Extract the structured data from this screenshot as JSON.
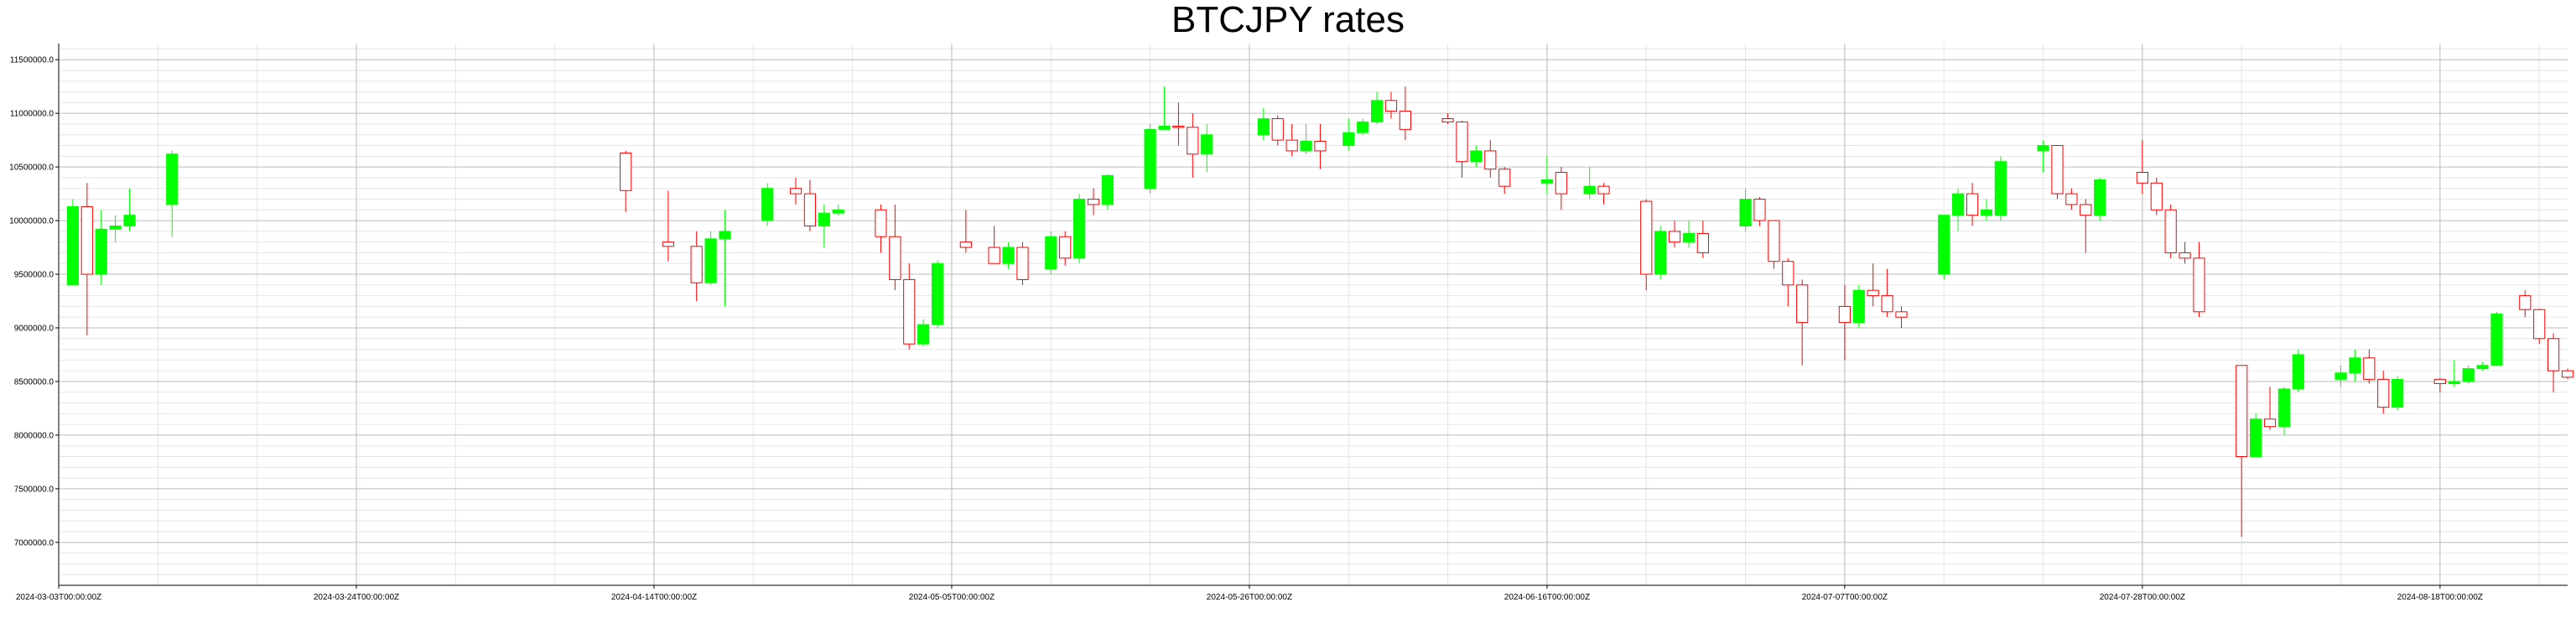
{
  "chart_data": {
    "type": "candlestick",
    "title": "BTCJPY rates",
    "xlabel": "",
    "ylabel": "",
    "x_axis": {
      "type": "date",
      "range": [
        "2024-03-03",
        "2024-08-27"
      ],
      "ticks": [
        {
          "date": "2024-03-03",
          "label": "2024-03-03T00:00:00Z"
        },
        {
          "date": "2024-03-24",
          "label": "2024-03-24T00:00:00Z"
        },
        {
          "date": "2024-04-14",
          "label": "2024-04-14T00:00:00Z"
        },
        {
          "date": "2024-05-05",
          "label": "2024-05-05T00:00:00Z"
        },
        {
          "date": "2024-05-26",
          "label": "2024-05-26T00:00:00Z"
        },
        {
          "date": "2024-06-16",
          "label": "2024-06-16T00:00:00Z"
        },
        {
          "date": "2024-07-07",
          "label": "2024-07-07T00:00:00Z"
        },
        {
          "date": "2024-07-28",
          "label": "2024-07-28T00:00:00Z"
        },
        {
          "date": "2024-08-18",
          "label": "2024-08-18T00:00:00Z"
        }
      ]
    },
    "y_axis": {
      "range": [
        6600000,
        11650000
      ],
      "ticks": [
        {
          "value": 7000000,
          "label": "7000000.0"
        },
        {
          "value": 7500000,
          "label": "7500000.0"
        },
        {
          "value": 8000000,
          "label": "8000000.0"
        },
        {
          "value": 8500000,
          "label": "8500000.0"
        },
        {
          "value": 9000000,
          "label": "9000000.0"
        },
        {
          "value": 9500000,
          "label": "9500000.0"
        },
        {
          "value": 10000000,
          "label": "10000000.0"
        },
        {
          "value": 10500000,
          "label": "10500000.0"
        },
        {
          "value": 11000000,
          "label": "11000000.0"
        },
        {
          "value": 11500000,
          "label": "11500000.0"
        }
      ]
    },
    "grid": true,
    "colors": {
      "up": "#00ff00",
      "down": "#ff0000",
      "major_grid": "#bbbbbb",
      "minor_grid": "#e6e6e6"
    },
    "candles": [
      {
        "date": "2024-03-04",
        "open": 9400000,
        "high": 10200000,
        "low": 9400000,
        "close": 10130000
      },
      {
        "date": "2024-03-05",
        "open": 10130000,
        "high": 10350000,
        "low": 8930000,
        "close": 9500000
      },
      {
        "date": "2024-03-06",
        "open": 9500000,
        "high": 10100000,
        "low": 9400000,
        "close": 9920000
      },
      {
        "date": "2024-03-07",
        "open": 9920000,
        "high": 10050000,
        "low": 9800000,
        "close": 9950000
      },
      {
        "date": "2024-03-08",
        "open": 9950000,
        "high": 10300000,
        "low": 9900000,
        "close": 10050000
      },
      {
        "date": "2024-03-11",
        "open": 10150000,
        "high": 10650000,
        "low": 9850000,
        "close": 10620000
      },
      {
        "date": "2024-04-12",
        "open": 10630000,
        "high": 10650000,
        "low": 10080000,
        "close": 10280000
      },
      {
        "date": "2024-04-15",
        "open": 9800000,
        "high": 10280000,
        "low": 9620000,
        "close": 9760000
      },
      {
        "date": "2024-04-17",
        "open": 9760000,
        "high": 9900000,
        "low": 9250000,
        "close": 9420000
      },
      {
        "date": "2024-04-18",
        "open": 9420000,
        "high": 9900000,
        "low": 9400000,
        "close": 9830000
      },
      {
        "date": "2024-04-19",
        "open": 9830000,
        "high": 10100000,
        "low": 9200000,
        "close": 9900000
      },
      {
        "date": "2024-04-22",
        "open": 10000000,
        "high": 10350000,
        "low": 9950000,
        "close": 10300000
      },
      {
        "date": "2024-04-24",
        "open": 10300000,
        "high": 10400000,
        "low": 10150000,
        "close": 10250000
      },
      {
        "date": "2024-04-25",
        "open": 10250000,
        "high": 10380000,
        "low": 9900000,
        "close": 9950000
      },
      {
        "date": "2024-04-26",
        "open": 9950000,
        "high": 10150000,
        "low": 9750000,
        "close": 10070000
      },
      {
        "date": "2024-04-27",
        "open": 10070000,
        "high": 10150000,
        "low": 10050000,
        "close": 10100000
      },
      {
        "date": "2024-04-30",
        "open": 10100000,
        "high": 10150000,
        "low": 9700000,
        "close": 9850000
      },
      {
        "date": "2024-05-01",
        "open": 9850000,
        "high": 10150000,
        "low": 9350000,
        "close": 9450000
      },
      {
        "date": "2024-05-02",
        "open": 9450000,
        "high": 9600000,
        "low": 8800000,
        "close": 8850000
      },
      {
        "date": "2024-05-03",
        "open": 8850000,
        "high": 9080000,
        "low": 8830000,
        "close": 9030000
      },
      {
        "date": "2024-05-04",
        "open": 9030000,
        "high": 9630000,
        "low": 9000000,
        "close": 9600000
      },
      {
        "date": "2024-05-06",
        "open": 9800000,
        "high": 10100000,
        "low": 9700000,
        "close": 9750000
      },
      {
        "date": "2024-05-08",
        "open": 9750000,
        "high": 9950000,
        "low": 9620000,
        "close": 9600000
      },
      {
        "date": "2024-05-09",
        "open": 9600000,
        "high": 9800000,
        "low": 9550000,
        "close": 9750000
      },
      {
        "date": "2024-05-10",
        "open": 9750000,
        "high": 9800000,
        "low": 9400000,
        "close": 9450000
      },
      {
        "date": "2024-05-12",
        "open": 9550000,
        "high": 9900000,
        "low": 9500000,
        "close": 9850000
      },
      {
        "date": "2024-05-13",
        "open": 9850000,
        "high": 9900000,
        "low": 9580000,
        "close": 9650000
      },
      {
        "date": "2024-05-14",
        "open": 9650000,
        "high": 10250000,
        "low": 9600000,
        "close": 10200000
      },
      {
        "date": "2024-05-15",
        "open": 10200000,
        "high": 10300000,
        "low": 10050000,
        "close": 10150000
      },
      {
        "date": "2024-05-16",
        "open": 10150000,
        "high": 10430000,
        "low": 10100000,
        "close": 10420000
      },
      {
        "date": "2024-05-19",
        "open": 10300000,
        "high": 10900000,
        "low": 10250000,
        "close": 10850000
      },
      {
        "date": "2024-05-20",
        "open": 10850000,
        "high": 11250000,
        "low": 10850000,
        "close": 10880000
      },
      {
        "date": "2024-05-21",
        "open": 10880000,
        "high": 11100000,
        "low": 10700000,
        "close": 10870000
      },
      {
        "date": "2024-05-22",
        "open": 10870000,
        "high": 11000000,
        "low": 10400000,
        "close": 10620000
      },
      {
        "date": "2024-05-23",
        "open": 10620000,
        "high": 10900000,
        "low": 10450000,
        "close": 10800000
      },
      {
        "date": "2024-05-27",
        "open": 10800000,
        "high": 11050000,
        "low": 10750000,
        "close": 10950000
      },
      {
        "date": "2024-05-28",
        "open": 10950000,
        "high": 10980000,
        "low": 10700000,
        "close": 10750000
      },
      {
        "date": "2024-05-29",
        "open": 10750000,
        "high": 10900000,
        "low": 10600000,
        "close": 10650000
      },
      {
        "date": "2024-05-30",
        "open": 10650000,
        "high": 10900000,
        "low": 10620000,
        "close": 10740000
      },
      {
        "date": "2024-05-31",
        "open": 10740000,
        "high": 10900000,
        "low": 10480000,
        "close": 10650000
      },
      {
        "date": "2024-06-02",
        "open": 10700000,
        "high": 10950000,
        "low": 10650000,
        "close": 10820000
      },
      {
        "date": "2024-06-03",
        "open": 10820000,
        "high": 10950000,
        "low": 10800000,
        "close": 10920000
      },
      {
        "date": "2024-06-04",
        "open": 10920000,
        "high": 11200000,
        "low": 10900000,
        "close": 11120000
      },
      {
        "date": "2024-06-05",
        "open": 11120000,
        "high": 11200000,
        "low": 10950000,
        "close": 11020000
      },
      {
        "date": "2024-06-06",
        "open": 11020000,
        "high": 11250000,
        "low": 10750000,
        "close": 10850000
      },
      {
        "date": "2024-06-09",
        "open": 10950000,
        "high": 11000000,
        "low": 10900000,
        "close": 10920000
      },
      {
        "date": "2024-06-10",
        "open": 10920000,
        "high": 10930000,
        "low": 10400000,
        "close": 10550000
      },
      {
        "date": "2024-06-11",
        "open": 10550000,
        "high": 10700000,
        "low": 10500000,
        "close": 10650000
      },
      {
        "date": "2024-06-12",
        "open": 10650000,
        "high": 10750000,
        "low": 10400000,
        "close": 10480000
      },
      {
        "date": "2024-06-13",
        "open": 10480000,
        "high": 10500000,
        "low": 10250000,
        "close": 10320000
      },
      {
        "date": "2024-06-16",
        "open": 10350000,
        "high": 10600000,
        "low": 10250000,
        "close": 10380000
      },
      {
        "date": "2024-06-17",
        "open": 10450000,
        "high": 10500000,
        "low": 10100000,
        "close": 10250000
      },
      {
        "date": "2024-06-19",
        "open": 10250000,
        "high": 10500000,
        "low": 10200000,
        "close": 10320000
      },
      {
        "date": "2024-06-20",
        "open": 10320000,
        "high": 10350000,
        "low": 10150000,
        "close": 10250000
      },
      {
        "date": "2024-06-23",
        "open": 10180000,
        "high": 10200000,
        "low": 9350000,
        "close": 9500000
      },
      {
        "date": "2024-06-24",
        "open": 9500000,
        "high": 9950000,
        "low": 9450000,
        "close": 9900000
      },
      {
        "date": "2024-06-25",
        "open": 9900000,
        "high": 10000000,
        "low": 9750000,
        "close": 9800000
      },
      {
        "date": "2024-06-26",
        "open": 9800000,
        "high": 10000000,
        "low": 9750000,
        "close": 9880000
      },
      {
        "date": "2024-06-27",
        "open": 9880000,
        "high": 10000000,
        "low": 9650000,
        "close": 9700000
      },
      {
        "date": "2024-06-30",
        "open": 9950000,
        "high": 10300000,
        "low": 9900000,
        "close": 10200000
      },
      {
        "date": "2024-07-01",
        "open": 10200000,
        "high": 10220000,
        "low": 9950000,
        "close": 10000000
      },
      {
        "date": "2024-07-02",
        "open": 10000000,
        "high": 10000000,
        "low": 9550000,
        "close": 9620000
      },
      {
        "date": "2024-07-03",
        "open": 9620000,
        "high": 9650000,
        "low": 9200000,
        "close": 9400000
      },
      {
        "date": "2024-07-04",
        "open": 9400000,
        "high": 9450000,
        "low": 8650000,
        "close": 9050000
      },
      {
        "date": "2024-07-07",
        "open": 9200000,
        "high": 9400000,
        "low": 8700000,
        "close": 9050000
      },
      {
        "date": "2024-07-08",
        "open": 9050000,
        "high": 9400000,
        "low": 9000000,
        "close": 9350000
      },
      {
        "date": "2024-07-09",
        "open": 9350000,
        "high": 9600000,
        "low": 9200000,
        "close": 9300000
      },
      {
        "date": "2024-07-10",
        "open": 9300000,
        "high": 9550000,
        "low": 9100000,
        "close": 9150000
      },
      {
        "date": "2024-07-11",
        "open": 9150000,
        "high": 9200000,
        "low": 9000000,
        "close": 9100000
      },
      {
        "date": "2024-07-14",
        "open": 9500000,
        "high": 10050000,
        "low": 9450000,
        "close": 10050000
      },
      {
        "date": "2024-07-15",
        "open": 10050000,
        "high": 10300000,
        "low": 9900000,
        "close": 10250000
      },
      {
        "date": "2024-07-16",
        "open": 10250000,
        "high": 10350000,
        "low": 9950000,
        "close": 10050000
      },
      {
        "date": "2024-07-17",
        "open": 10050000,
        "high": 10200000,
        "low": 10000000,
        "close": 10100000
      },
      {
        "date": "2024-07-18",
        "open": 10050000,
        "high": 10600000,
        "low": 10000000,
        "close": 10550000
      },
      {
        "date": "2024-07-21",
        "open": 10650000,
        "high": 10750000,
        "low": 10450000,
        "close": 10700000
      },
      {
        "date": "2024-07-22",
        "open": 10700000,
        "high": 10700000,
        "low": 10200000,
        "close": 10250000
      },
      {
        "date": "2024-07-23",
        "open": 10250000,
        "high": 10300000,
        "low": 10100000,
        "close": 10150000
      },
      {
        "date": "2024-07-24",
        "open": 10150000,
        "high": 10200000,
        "low": 9700000,
        "close": 10050000
      },
      {
        "date": "2024-07-25",
        "open": 10050000,
        "high": 10400000,
        "low": 10000000,
        "close": 10380000
      },
      {
        "date": "2024-07-28",
        "open": 10450000,
        "high": 10750000,
        "low": 10250000,
        "close": 10350000
      },
      {
        "date": "2024-07-29",
        "open": 10350000,
        "high": 10400000,
        "low": 10050000,
        "close": 10100000
      },
      {
        "date": "2024-07-30",
        "open": 10100000,
        "high": 10150000,
        "low": 9650000,
        "close": 9700000
      },
      {
        "date": "2024-07-31",
        "open": 9700000,
        "high": 9800000,
        "low": 9600000,
        "close": 9650000
      },
      {
        "date": "2024-08-01",
        "open": 9650000,
        "high": 9800000,
        "low": 9100000,
        "close": 9150000
      },
      {
        "date": "2024-08-04",
        "open": 8650000,
        "high": 8650000,
        "low": 7050000,
        "close": 7800000
      },
      {
        "date": "2024-08-05",
        "open": 7800000,
        "high": 8200000,
        "low": 7800000,
        "close": 8150000
      },
      {
        "date": "2024-08-06",
        "open": 8150000,
        "high": 8450000,
        "low": 8050000,
        "close": 8080000
      },
      {
        "date": "2024-08-07",
        "open": 8080000,
        "high": 8450000,
        "low": 8000000,
        "close": 8430000
      },
      {
        "date": "2024-08-08",
        "open": 8430000,
        "high": 8800000,
        "low": 8400000,
        "close": 8750000
      },
      {
        "date": "2024-08-11",
        "open": 8520000,
        "high": 8650000,
        "low": 8450000,
        "close": 8580000
      },
      {
        "date": "2024-08-12",
        "open": 8580000,
        "high": 8800000,
        "low": 8500000,
        "close": 8720000
      },
      {
        "date": "2024-08-13",
        "open": 8720000,
        "high": 8800000,
        "low": 8480000,
        "close": 8520000
      },
      {
        "date": "2024-08-14",
        "open": 8520000,
        "high": 8600000,
        "low": 8200000,
        "close": 8260000
      },
      {
        "date": "2024-08-15",
        "open": 8260000,
        "high": 8550000,
        "low": 8230000,
        "close": 8520000
      },
      {
        "date": "2024-08-18",
        "open": 8520000,
        "high": 8530000,
        "low": 8400000,
        "close": 8480000
      },
      {
        "date": "2024-08-19",
        "open": 8480000,
        "high": 8700000,
        "low": 8450000,
        "close": 8500000
      },
      {
        "date": "2024-08-20",
        "open": 8500000,
        "high": 8650000,
        "low": 8480000,
        "close": 8620000
      },
      {
        "date": "2024-08-21",
        "open": 8620000,
        "high": 8680000,
        "low": 8600000,
        "close": 8650000
      },
      {
        "date": "2024-08-22",
        "open": 8650000,
        "high": 9150000,
        "low": 8650000,
        "close": 9130000
      },
      {
        "date": "2024-08-24",
        "open": 9300000,
        "high": 9350000,
        "low": 9100000,
        "close": 9170000
      },
      {
        "date": "2024-08-25",
        "open": 9170000,
        "high": 9180000,
        "low": 8850000,
        "close": 8900000
      },
      {
        "date": "2024-08-26",
        "open": 8900000,
        "high": 8950000,
        "low": 8400000,
        "close": 8600000
      },
      {
        "date": "2024-08-27",
        "open": 8600000,
        "high": 8620000,
        "low": 8520000,
        "close": 8540000
      }
    ]
  }
}
